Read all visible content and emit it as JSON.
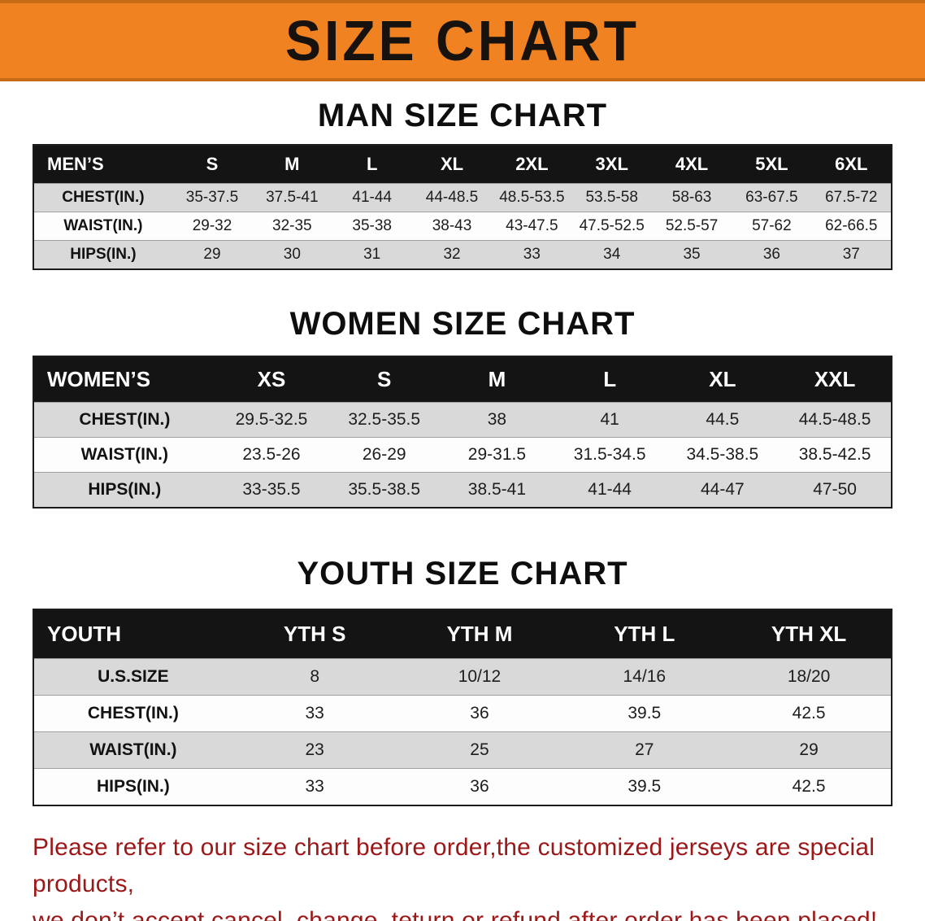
{
  "banner": {
    "title": "SIZE CHART",
    "background_color": "#F08222",
    "text_color": "#17120d"
  },
  "colors": {
    "table_header_bg": "#141414",
    "table_row_gray": "#d9d9d9",
    "footer_text": "#9c1717"
  },
  "men": {
    "heading": "MAN SIZE CHART",
    "columns": [
      "MEN’S",
      "S",
      "M",
      "L",
      "XL",
      "2XL",
      "3XL",
      "4XL",
      "5XL",
      "6XL"
    ],
    "rows": [
      {
        "label": "CHEST(IN.)",
        "values": [
          "35-37.5",
          "37.5-41",
          "41-44",
          "44-48.5",
          "48.5-53.5",
          "53.5-58",
          "58-63",
          "63-67.5",
          "67.5-72"
        ]
      },
      {
        "label": "WAIST(IN.)",
        "values": [
          "29-32",
          "32-35",
          "35-38",
          "38-43",
          "43-47.5",
          "47.5-52.5",
          "52.5-57",
          "57-62",
          "62-66.5"
        ]
      },
      {
        "label": "HIPS(IN.)",
        "values": [
          "29",
          "30",
          "31",
          "32",
          "33",
          "34",
          "35",
          "36",
          "37"
        ]
      }
    ]
  },
  "women": {
    "heading": "WOMEN SIZE CHART",
    "columns": [
      "WOMEN’S",
      "XS",
      "S",
      "M",
      "L",
      "XL",
      "XXL"
    ],
    "rows": [
      {
        "label": "CHEST(IN.)",
        "values": [
          "29.5-32.5",
          "32.5-35.5",
          "38",
          "41",
          "44.5",
          "44.5-48.5"
        ]
      },
      {
        "label": "WAIST(IN.)",
        "values": [
          "23.5-26",
          "26-29",
          "29-31.5",
          "31.5-34.5",
          "34.5-38.5",
          "38.5-42.5"
        ]
      },
      {
        "label": "HIPS(IN.)",
        "values": [
          "33-35.5",
          "35.5-38.5",
          "38.5-41",
          "41-44",
          "44-47",
          "47-50"
        ]
      }
    ]
  },
  "youth": {
    "heading": "YOUTH SIZE CHART",
    "columns": [
      "YOUTH",
      "YTH S",
      "YTH M",
      "YTH L",
      "YTH XL"
    ],
    "rows": [
      {
        "label": "U.S.SIZE",
        "values": [
          "8",
          "10/12",
          "14/16",
          "18/20"
        ]
      },
      {
        "label": "CHEST(IN.)",
        "values": [
          "33",
          "36",
          "39.5",
          "42.5"
        ]
      },
      {
        "label": "WAIST(IN.)",
        "values": [
          "23",
          "25",
          "27",
          "29"
        ]
      },
      {
        "label": "HIPS(IN.)",
        "values": [
          "33",
          "36",
          "39.5",
          "42.5"
        ]
      }
    ]
  },
  "footer": {
    "line1": "Please refer to our size chart before order,the customized jerseys are special products,",
    "line2": "we don’t accept cancel, change, teturn or refund after order has been placed!"
  }
}
